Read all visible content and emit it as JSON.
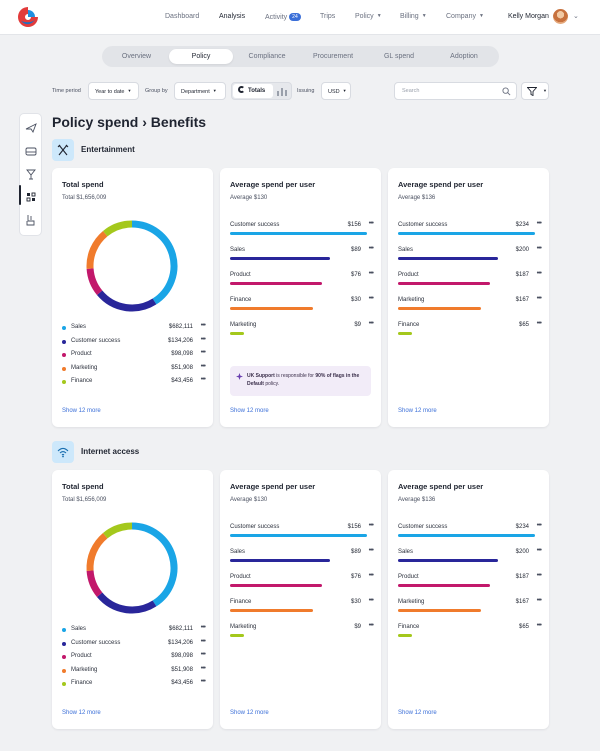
{
  "nav": {
    "items": [
      "Dashboard",
      "Analysis",
      "Activity",
      "Trips",
      "Policy",
      "Billing",
      "Company"
    ],
    "active": "Analysis",
    "activity_count": "24",
    "user_name": "Kelly Morgan"
  },
  "tabs": [
    "Overview",
    "Policy",
    "Compliance",
    "Procurement",
    "GL spend",
    "Adoption"
  ],
  "active_tab": "Policy",
  "filters": {
    "time_label": "Time period",
    "time_value": "Year to date",
    "group_label": "Group by",
    "group_value": "Department",
    "totals_label": "Totals",
    "issuing_label": "Issuing",
    "issuing_value": "USD",
    "search_placeholder": "Search"
  },
  "page_title": "Policy spend › Benefits",
  "colors": {
    "accent": "#3b6fd8",
    "customer_success": "#1aa5e6",
    "sales": "#29269a",
    "product": "#c2186b",
    "marketing": "#f07b2c",
    "finance": "#a4c81c"
  },
  "sections": [
    {
      "title": "Entertainment",
      "icon": "utensils-icon",
      "total": {
        "title": "Total spend",
        "subtitle": "Total $1,656,009",
        "legend": [
          {
            "label": "Sales",
            "value": "$682,111",
            "color": "#1aa5e6",
            "share": 0.41
          },
          {
            "label": "Customer success",
            "value": "$134,206",
            "color": "#29269a",
            "share": 0.23
          },
          {
            "label": "Product",
            "value": "$98,098",
            "color": "#c2186b",
            "share": 0.1
          },
          {
            "label": "Marketing",
            "value": "$51,908",
            "color": "#f07b2c",
            "share": 0.15
          },
          {
            "label": "Finance",
            "value": "$43,456",
            "color": "#a4c81c",
            "share": 0.11
          }
        ],
        "show_more": "Show 12 more"
      },
      "avg1": {
        "title": "Average spend per user",
        "subtitle": "Average $130",
        "bars": [
          {
            "label": "Customer success",
            "value": "$156",
            "color": "#1aa5e6",
            "fraction": 0.96
          },
          {
            "label": "Sales",
            "value": "$89",
            "color": "#29269a",
            "fraction": 0.7
          },
          {
            "label": "Product",
            "value": "$76",
            "color": "#c2186b",
            "fraction": 0.64
          },
          {
            "label": "Finance",
            "value": "$30",
            "color": "#f07b2c",
            "fraction": 0.58
          },
          {
            "label": "Marketing",
            "value": "$9",
            "color": "#a4c81c",
            "fraction": 0.1
          }
        ],
        "note_prefix": "UK Support",
        "note_middle": " is responsible for ",
        "note_strong": "90% of flags in the Default",
        "note_suffix": " policy.",
        "show_more": "Show 12 more"
      },
      "avg2": {
        "title": "Average spend per user",
        "subtitle": "Average $136",
        "bars": [
          {
            "label": "Customer success",
            "value": "$234",
            "color": "#1aa5e6",
            "fraction": 0.96
          },
          {
            "label": "Sales",
            "value": "$200",
            "color": "#29269a",
            "fraction": 0.7
          },
          {
            "label": "Product",
            "value": "$187",
            "color": "#c2186b",
            "fraction": 0.64
          },
          {
            "label": "Marketing",
            "value": "$167",
            "color": "#f07b2c",
            "fraction": 0.58
          },
          {
            "label": "Finance",
            "value": "$65",
            "color": "#a4c81c",
            "fraction": 0.1
          }
        ],
        "show_more": "Show 12 more"
      }
    },
    {
      "title": "Internet access",
      "icon": "wifi-icon",
      "total": {
        "title": "Total spend",
        "subtitle": "Total $1,656,009",
        "legend": [
          {
            "label": "Sales",
            "value": "$682,111",
            "color": "#1aa5e6",
            "share": 0.41
          },
          {
            "label": "Customer success",
            "value": "$134,206",
            "color": "#29269a",
            "share": 0.23
          },
          {
            "label": "Product",
            "value": "$98,098",
            "color": "#c2186b",
            "share": 0.1
          },
          {
            "label": "Marketing",
            "value": "$51,908",
            "color": "#f07b2c",
            "share": 0.15
          },
          {
            "label": "Finance",
            "value": "$43,456",
            "color": "#a4c81c",
            "share": 0.11
          }
        ],
        "show_more": "Show 12 more"
      },
      "avg1": {
        "title": "Average spend per user",
        "subtitle": "Average $130",
        "bars": [
          {
            "label": "Customer success",
            "value": "$156",
            "color": "#1aa5e6",
            "fraction": 0.96
          },
          {
            "label": "Sales",
            "value": "$89",
            "color": "#29269a",
            "fraction": 0.7
          },
          {
            "label": "Product",
            "value": "$76",
            "color": "#c2186b",
            "fraction": 0.64
          },
          {
            "label": "Finance",
            "value": "$30",
            "color": "#f07b2c",
            "fraction": 0.58
          },
          {
            "label": "Marketing",
            "value": "$9",
            "color": "#a4c81c",
            "fraction": 0.1
          }
        ],
        "show_more": "Show 12 more"
      },
      "avg2": {
        "title": "Average spend per user",
        "subtitle": "Average $136",
        "bars": [
          {
            "label": "Customer success",
            "value": "$234",
            "color": "#1aa5e6",
            "fraction": 0.96
          },
          {
            "label": "Sales",
            "value": "$200",
            "color": "#29269a",
            "fraction": 0.7
          },
          {
            "label": "Product",
            "value": "$187",
            "color": "#c2186b",
            "fraction": 0.64
          },
          {
            "label": "Marketing",
            "value": "$167",
            "color": "#f07b2c",
            "fraction": 0.58
          },
          {
            "label": "Finance",
            "value": "$65",
            "color": "#a4c81c",
            "fraction": 0.1
          }
        ],
        "show_more": "Show 12 more"
      }
    }
  ]
}
